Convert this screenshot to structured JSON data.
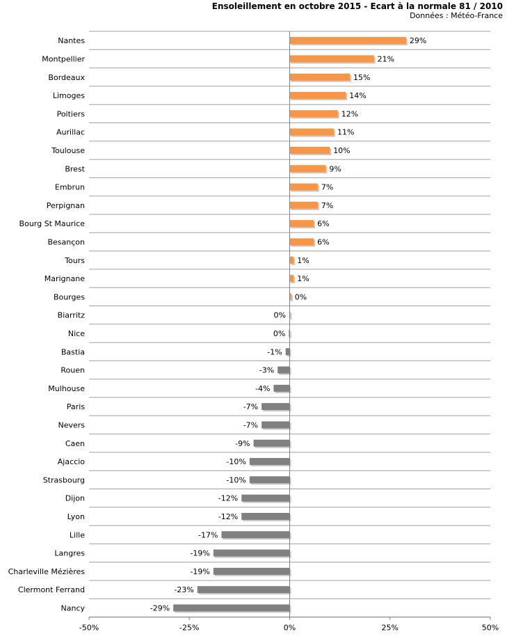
{
  "chart_data": {
    "type": "bar",
    "orientation": "horizontal",
    "title": "Ensoleillement en octobre 2015 - Ecart à la normale 81 / 2010",
    "subtitle": "Données : Météo-France",
    "categories": [
      "Nantes",
      "Montpellier",
      "Bordeaux",
      "Limoges",
      "Poitiers",
      "Aurillac",
      "Toulouse",
      "Brest",
      "Embrun",
      "Perpignan",
      "Bourg St Maurice",
      "Besançon",
      "Tours",
      "Marignane",
      "Bourges",
      "Biarritz",
      "Nice",
      "Bastia",
      "Rouen",
      "Mulhouse",
      "Paris",
      "Nevers",
      "Caen",
      "Ajaccio",
      "Strasbourg",
      "Dijon",
      "Lyon",
      "Lille",
      "Langres",
      "Charleville Mézières",
      "Clermont Ferrand",
      "Nancy"
    ],
    "values": [
      0.29,
      0.21,
      0.15,
      0.14,
      0.12,
      0.11,
      0.1,
      0.09,
      0.07,
      0.07,
      0.06,
      0.06,
      0.01,
      0.01,
      0.004,
      -0.001,
      -0.002,
      -0.01,
      -0.03,
      -0.04,
      -0.07,
      -0.07,
      -0.09,
      -0.1,
      -0.1,
      -0.12,
      -0.12,
      -0.17,
      -0.19,
      -0.19,
      -0.23,
      -0.29
    ],
    "value_labels": [
      "29%",
      "21%",
      "15%",
      "14%",
      "12%",
      "11%",
      "10%",
      "9%",
      "7%",
      "7%",
      "6%",
      "6%",
      "1%",
      "1%",
      "0%",
      "0%",
      "0%",
      "-1%",
      "-3%",
      "-4%",
      "-7%",
      "-7%",
      "-9%",
      "-10%",
      "-10%",
      "-12%",
      "-12%",
      "-17%",
      "-19%",
      "-19%",
      "-23%",
      "-29%"
    ],
    "xlim": [
      -0.5,
      0.5
    ],
    "x_ticks": [
      -0.5,
      -0.25,
      0,
      0.25,
      0.5
    ],
    "x_tick_labels": [
      "-50%",
      "-25%",
      "0%",
      "25%",
      "50%"
    ],
    "colors": {
      "positive": "#f79646",
      "negative": "#808080",
      "grid": "#a0a0a0",
      "axis": "#808080",
      "shadow": "#c8c8c8"
    },
    "grid": true,
    "legend": "none"
  }
}
